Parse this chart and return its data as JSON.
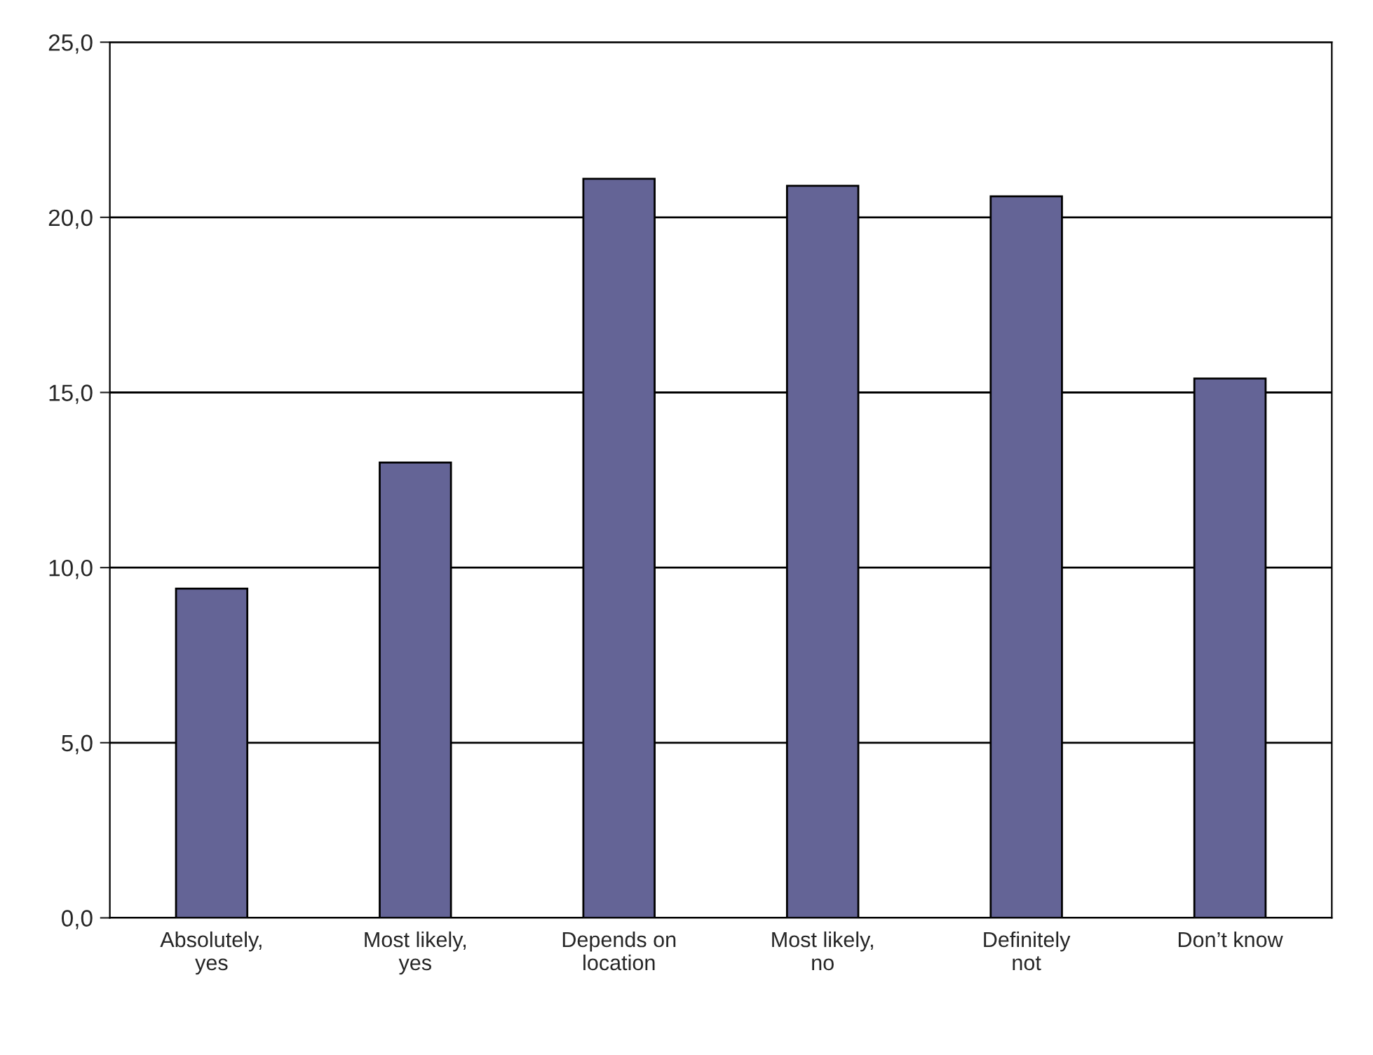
{
  "chart_data": {
    "type": "bar",
    "categories": [
      "Absolutely,\nyes",
      "Most likely,\nyes",
      "Depends on\nlocation",
      "Most likely,\nno",
      "Definitely\nnot",
      "Don’t know"
    ],
    "values": [
      9.4,
      13.0,
      21.1,
      20.9,
      20.6,
      15.4
    ],
    "color": "#646496",
    "ylim": [
      0,
      25
    ],
    "yticks": [
      {
        "value": 0,
        "label": "0,0"
      },
      {
        "value": 5,
        "label": "5,0"
      },
      {
        "value": 10,
        "label": "10,0"
      },
      {
        "value": 15,
        "label": "15,0"
      },
      {
        "value": 20,
        "label": "20,0"
      },
      {
        "value": 25,
        "label": "25,0"
      }
    ],
    "grid": "y"
  }
}
